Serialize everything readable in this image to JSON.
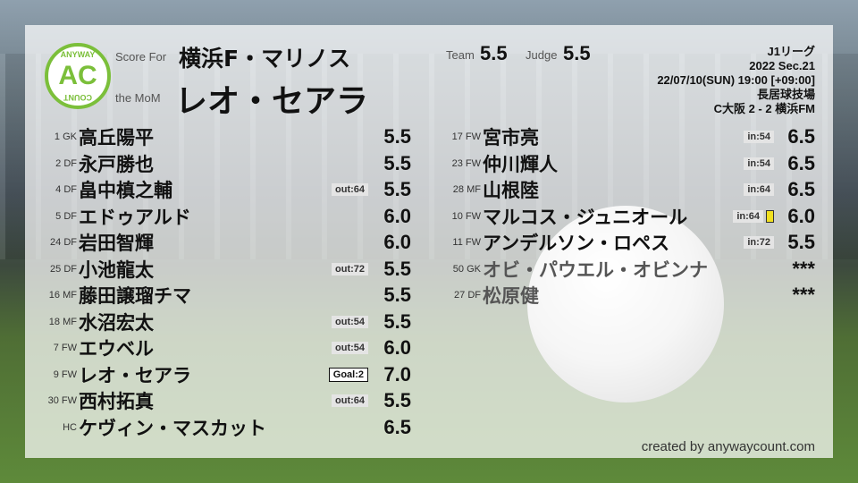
{
  "header": {
    "score_for_label": "Score For",
    "team": "横浜F・マリノス",
    "mom_label": "the MoM",
    "mom": "レオ・セアラ",
    "team_label": "Team",
    "team_score": "5.5",
    "judge_label": "Judge",
    "judge_score": "5.5",
    "logo_top": "ANYWAY",
    "logo_mid": "AC",
    "logo_bottom": "COUNT"
  },
  "match": {
    "league": "J1リーグ",
    "section": "2022 Sec.21",
    "datetime": "22/07/10(SUN) 19:00 [+09:00]",
    "venue": "長居球技場",
    "result": "C大阪 2 - 2 横浜FM"
  },
  "starters": [
    {
      "num": "1",
      "pos": "GK",
      "name": "高丘陽平",
      "badge": "",
      "score": "5.5"
    },
    {
      "num": "2",
      "pos": "DF",
      "name": "永戸勝也",
      "badge": "",
      "score": "5.5"
    },
    {
      "num": "4",
      "pos": "DF",
      "name": "畠中槙之輔",
      "badge": "out:64",
      "score": "5.5"
    },
    {
      "num": "5",
      "pos": "DF",
      "name": "エドゥアルド",
      "badge": "",
      "score": "6.0"
    },
    {
      "num": "24",
      "pos": "DF",
      "name": "岩田智輝",
      "badge": "",
      "score": "6.0"
    },
    {
      "num": "25",
      "pos": "DF",
      "name": "小池龍太",
      "badge": "out:72",
      "score": "5.5"
    },
    {
      "num": "16",
      "pos": "MF",
      "name": "藤田譲瑠チマ",
      "badge": "",
      "score": "5.5"
    },
    {
      "num": "18",
      "pos": "MF",
      "name": "水沼宏太",
      "badge": "out:54",
      "score": "5.5"
    },
    {
      "num": "7",
      "pos": "FW",
      "name": "エウベル",
      "badge": "out:54",
      "score": "6.0"
    },
    {
      "num": "9",
      "pos": "FW",
      "name": "レオ・セアラ",
      "badge": "Goal:2",
      "goal": true,
      "score": "7.0"
    },
    {
      "num": "30",
      "pos": "FW",
      "name": "西村拓真",
      "badge": "out:64",
      "score": "5.5"
    },
    {
      "num": "",
      "pos": "HC",
      "name": "ケヴィン・マスカット",
      "badge": "",
      "score": "6.5"
    }
  ],
  "subs": [
    {
      "num": "17",
      "pos": "FW",
      "name": "宮市亮",
      "badge": "in:54",
      "score": "6.5"
    },
    {
      "num": "23",
      "pos": "FW",
      "name": "仲川輝人",
      "badge": "in:54",
      "score": "6.5"
    },
    {
      "num": "28",
      "pos": "MF",
      "name": "山根陸",
      "badge": "in:64",
      "score": "6.5"
    },
    {
      "num": "10",
      "pos": "FW",
      "name": "マルコス・ジュニオール",
      "badge": "in:64",
      "yellow": true,
      "score": "6.0"
    },
    {
      "num": "11",
      "pos": "FW",
      "name": "アンデルソン・ロペス",
      "badge": "in:72",
      "score": "5.5"
    },
    {
      "num": "50",
      "pos": "GK",
      "name": "オビ・パウエル・オビンナ",
      "badge": "",
      "unused": true,
      "score": "***"
    },
    {
      "num": "27",
      "pos": "DF",
      "name": "松原健",
      "badge": "",
      "unused": true,
      "score": "***"
    }
  ],
  "credit": "created by anywaycount.com",
  "colors": {
    "brand": "#7bbf3a",
    "yellow_card": "#f0e020"
  }
}
